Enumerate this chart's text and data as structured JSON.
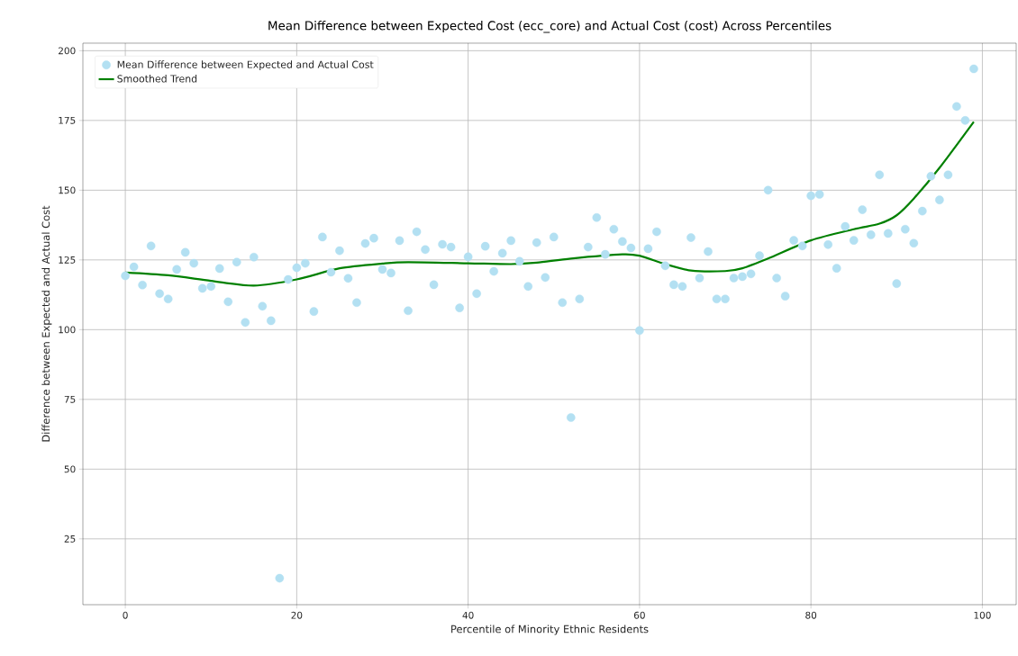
{
  "chart_data": {
    "type": "scatter",
    "title": "Mean Difference between Expected Cost (ecc_core) and Actual Cost (cost) Across Percentiles",
    "xlabel": "Percentile of Minority Ethnic Residents",
    "ylabel": "Difference between Expected and Actual Cost",
    "xlim": [
      -4.95,
      103.95
    ],
    "ylim": [
      1.4,
      202.7
    ],
    "xticks": [
      0,
      20,
      40,
      60,
      80,
      100
    ],
    "yticks": [
      25,
      50,
      75,
      100,
      125,
      150,
      175,
      200
    ],
    "grid": true,
    "legend": "top left",
    "marker": "circle",
    "series": [
      {
        "name": "Mean Difference between Expected and Actual Cost",
        "color": "#b3e0f2",
        "x": [
          0,
          1,
          2,
          3,
          4,
          5,
          6,
          7,
          8,
          9,
          10,
          11,
          12,
          13,
          14,
          15,
          16,
          17,
          18,
          19,
          20,
          21,
          22,
          23,
          24,
          25,
          26,
          27,
          28,
          29,
          30,
          31,
          32,
          33,
          34,
          35,
          36,
          37,
          38,
          39,
          40,
          41,
          42,
          43,
          44,
          45,
          46,
          47,
          48,
          49,
          50,
          51,
          52,
          53,
          54,
          55,
          56,
          57,
          58,
          59,
          60,
          61,
          62,
          63,
          64,
          65,
          66,
          67,
          68,
          69,
          70,
          71,
          72,
          73,
          74,
          75,
          76,
          77,
          78,
          79,
          80,
          81,
          82,
          83,
          84,
          85,
          86,
          87,
          88,
          89,
          90,
          91,
          92,
          93,
          94,
          95,
          96,
          97,
          98,
          99
        ],
        "values": [
          119.3,
          122.5,
          116,
          130,
          112.9,
          111,
          121.6,
          127.7,
          123.8,
          114.8,
          115.5,
          121.9,
          110,
          124.2,
          102.6,
          126,
          108.4,
          103.2,
          10.9,
          118,
          122.2,
          123.8,
          106.5,
          133.2,
          120.6,
          128.3,
          118.4,
          109.7,
          130.9,
          132.8,
          121.6,
          120.3,
          131.9,
          106.8,
          135.1,
          128.7,
          116.1,
          130.6,
          129.6,
          107.8,
          126.1,
          112.9,
          129.9,
          120.9,
          127.4,
          131.9,
          124.5,
          115.5,
          131.2,
          118.7,
          133.2,
          109.7,
          68.5,
          111,
          129.6,
          140.2,
          127,
          136,
          131.6,
          129.3,
          99.7,
          129,
          135.1,
          122.9,
          116.1,
          115.5,
          133,
          118.5,
          128,
          111,
          111,
          118.5,
          119,
          120,
          126.5,
          150,
          118.5,
          112,
          132,
          130,
          148,
          148.5,
          130.5,
          122,
          137,
          132,
          143,
          134,
          155.5,
          134.5,
          116.5,
          136,
          131,
          142.5,
          155,
          146.5,
          155.5,
          180,
          175,
          193.5
        ]
      },
      {
        "name": "Smoothed Trend",
        "type": "line",
        "color": "#008000",
        "marker": "none",
        "line_style": "solid",
        "x": [
          0,
          5,
          10,
          15,
          20,
          25,
          30,
          33,
          40,
          45,
          48,
          52,
          58,
          60,
          63,
          66,
          70,
          72,
          75,
          80,
          85,
          88,
          90,
          92,
          95,
          99
        ],
        "values": [
          120.5,
          119.5,
          117.5,
          115.8,
          118,
          122,
          123.7,
          124.2,
          123.8,
          123.5,
          124,
          125.5,
          127,
          126.5,
          123.5,
          121.2,
          121,
          122,
          125.5,
          132,
          136,
          138,
          141,
          147,
          158,
          174.5
        ]
      }
    ]
  }
}
